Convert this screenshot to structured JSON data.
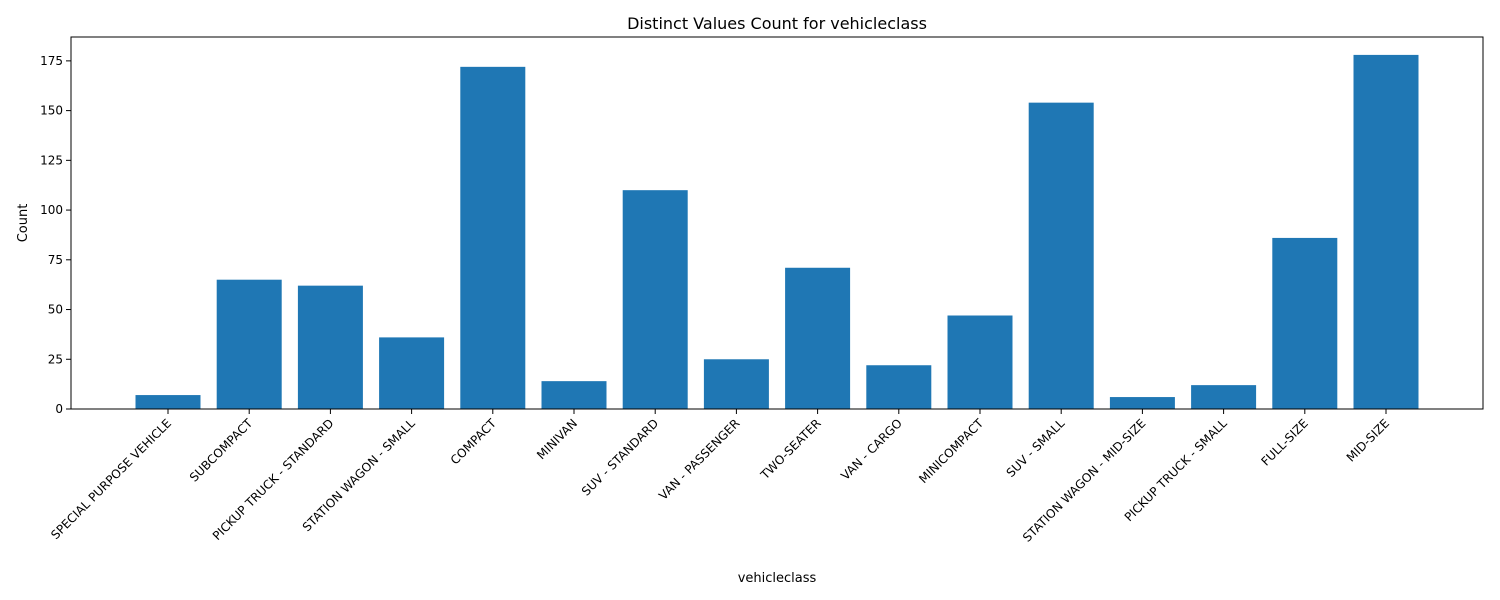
{
  "chart_data": {
    "type": "bar",
    "title": "Distinct Values Count for vehicleclass",
    "xlabel": "vehicleclass",
    "ylabel": "Count",
    "categories": [
      "SPECIAL PURPOSE VEHICLE",
      "SUBCOMPACT",
      "PICKUP TRUCK - STANDARD",
      "STATION WAGON - SMALL",
      "COMPACT",
      "MINIVAN",
      "SUV - STANDARD",
      "VAN - PASSENGER",
      "TWO-SEATER",
      "VAN - CARGO",
      "MINICOMPACT",
      "SUV - SMALL",
      "STATION WAGON - MID-SIZE",
      "PICKUP TRUCK - SMALL",
      "FULL-SIZE",
      "MID-SIZE"
    ],
    "values": [
      7,
      65,
      62,
      36,
      172,
      14,
      110,
      25,
      71,
      22,
      47,
      154,
      6,
      12,
      86,
      178
    ],
    "ylim": [
      0,
      187
    ],
    "yticks": [
      0,
      25,
      50,
      75,
      100,
      125,
      150,
      175
    ],
    "grid": false,
    "legend": "none",
    "bar_color": "#1f77b4"
  }
}
